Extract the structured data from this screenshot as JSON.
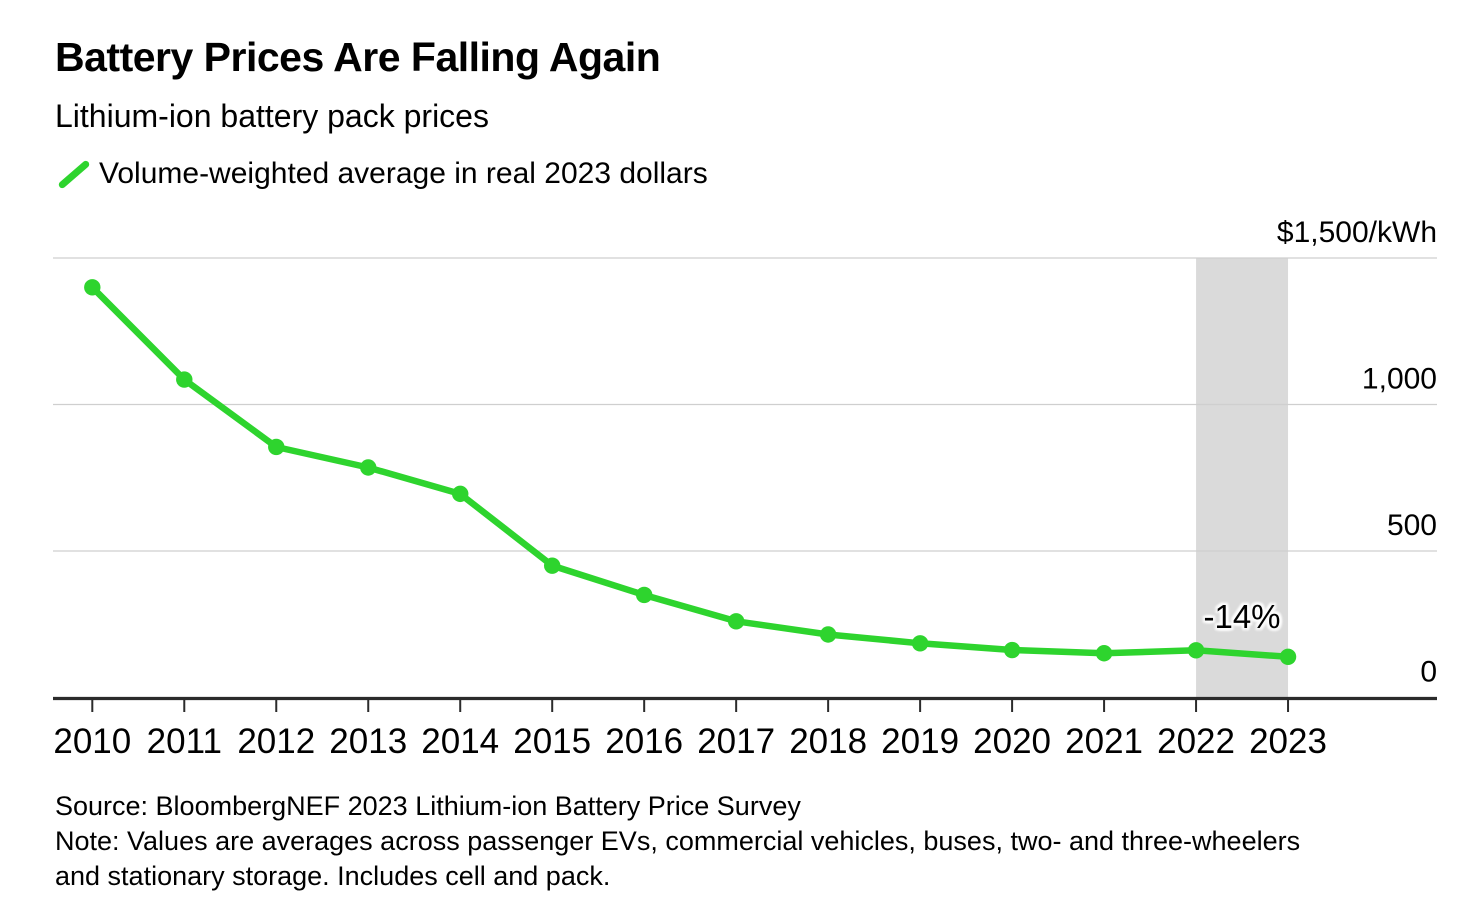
{
  "header": {
    "title": "Battery Prices Are Falling Again",
    "subtitle": "Lithium-ion battery pack prices",
    "legend": {
      "label": "Volume-weighted average in real 2023 dollars"
    }
  },
  "colors": {
    "series_green": "#2ed42e",
    "band_gray": "#dadada",
    "grid_gray": "#cfcfcf",
    "axis_dark": "#2b2b2b",
    "text_black": "#000000"
  },
  "chart_data": {
    "type": "line",
    "title": "Battery Prices Are Falling Again",
    "subtitle": "Lithium-ion battery pack prices",
    "xlabel": "",
    "ylabel": "",
    "grid": "horizontal",
    "legend_position": "top-left",
    "ylim": [
      0,
      1500
    ],
    "x": [
      2010,
      2011,
      2012,
      2013,
      2014,
      2015,
      2016,
      2017,
      2018,
      2019,
      2020,
      2021,
      2022,
      2023
    ],
    "xtick_labels": [
      "2010",
      "2011",
      "2012",
      "2013",
      "2014",
      "2015",
      "2016",
      "2017",
      "2018",
      "2019",
      "2020",
      "2021",
      "2022",
      "2023"
    ],
    "yticks": [
      {
        "value": 1500,
        "label": "$1,500/kWh"
      },
      {
        "value": 1000,
        "label": "1,000"
      },
      {
        "value": 500,
        "label": "500"
      },
      {
        "value": 0,
        "label": "0"
      }
    ],
    "series": [
      {
        "name": "Volume-weighted average in real 2023 dollars",
        "unit": "$/kWh",
        "values": [
          1400,
          1085,
          855,
          785,
          695,
          450,
          350,
          260,
          215,
          185,
          162,
          151,
          161,
          139
        ]
      }
    ],
    "annotation": {
      "text": "-14%",
      "span_years": [
        2022,
        2023
      ]
    }
  },
  "footer": {
    "lines": [
      "Source: BloombergNEF 2023 Lithium-ion Battery Price Survey",
      "Note: Values are averages across passenger EVs, commercial vehicles, buses, two- and three-wheelers",
      "and stationary storage. Includes cell and pack."
    ]
  }
}
